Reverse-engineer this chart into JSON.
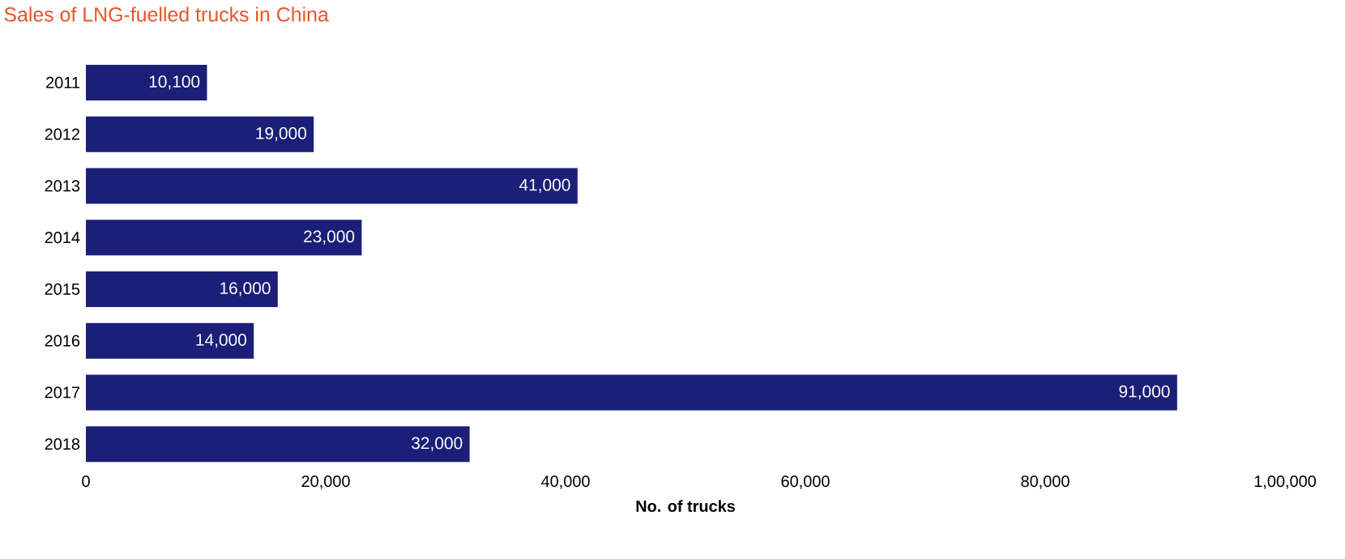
{
  "chart_data": {
    "type": "bar",
    "orientation": "horizontal",
    "title": "Sales of LNG-fuelled trucks in China",
    "xlabel": "No. of trucks",
    "categories": [
      "2011",
      "2012",
      "2013",
      "2014",
      "2015",
      "2016",
      "2017",
      "2018"
    ],
    "values": [
      10100,
      19000,
      41000,
      23000,
      16000,
      14000,
      91000,
      32000
    ],
    "value_labels": [
      "10,100",
      "19,000",
      "41,000",
      "23,000",
      "16,000",
      "14,000",
      "91,000",
      "32,000"
    ],
    "color": "#1b1f77",
    "xlim": [
      0,
      100000
    ],
    "xticks": [
      {
        "value": 0,
        "label": "0"
      },
      {
        "value": 20000,
        "label": "20,000"
      },
      {
        "value": 40000,
        "label": "40,000"
      },
      {
        "value": 60000,
        "label": "60,000"
      },
      {
        "value": 80000,
        "label": "80,000"
      },
      {
        "value": 100000,
        "label": "1,00,000"
      }
    ]
  }
}
